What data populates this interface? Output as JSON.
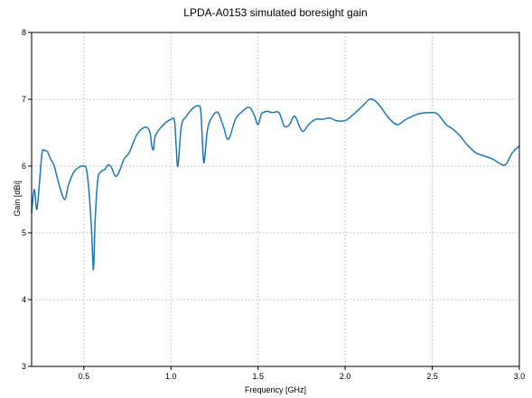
{
  "chart_data": {
    "type": "line",
    "title": "LPDA-A0153 simulated boresight gain",
    "xlabel": "Frequency [GHz]",
    "ylabel": "Gain [dBi]",
    "xlim": [
      0.2,
      3.0
    ],
    "ylim": [
      3,
      8
    ],
    "xticks": [
      0.5,
      1.0,
      1.5,
      2.0,
      2.5,
      3.0
    ],
    "xtick_labels": [
      "0.5",
      "1.0",
      "1.5",
      "2.0",
      "2.5",
      "3.0"
    ],
    "yticks": [
      3,
      4,
      5,
      6,
      7,
      8
    ],
    "ytick_labels": [
      "3",
      "4",
      "5",
      "6",
      "7",
      "8"
    ],
    "grid": true,
    "legend": "none",
    "colors": {
      "line": "#1f77b4",
      "grid": "#c8c8c8",
      "frame": "#000000"
    },
    "series": [
      {
        "x": [
          0.2,
          0.215,
          0.23,
          0.245,
          0.26,
          0.275,
          0.29,
          0.31,
          0.33,
          0.36,
          0.39,
          0.41,
          0.44,
          0.47,
          0.5,
          0.515,
          0.53,
          0.545,
          0.555,
          0.565,
          0.58,
          0.6,
          0.62,
          0.64,
          0.66,
          0.68,
          0.7,
          0.73,
          0.76,
          0.8,
          0.83,
          0.86,
          0.88,
          0.89,
          0.9,
          0.91,
          0.95,
          1.0,
          1.02,
          1.03,
          1.04,
          1.06,
          1.09,
          1.12,
          1.15,
          1.17,
          1.18,
          1.19,
          1.21,
          1.24,
          1.27,
          1.3,
          1.33,
          1.37,
          1.41,
          1.45,
          1.48,
          1.5,
          1.52,
          1.55,
          1.58,
          1.62,
          1.65,
          1.68,
          1.71,
          1.74,
          1.76,
          1.79,
          1.83,
          1.87,
          1.91,
          1.95,
          2.0,
          2.05,
          2.1,
          2.14,
          2.17,
          2.2,
          2.25,
          2.3,
          2.35,
          2.42,
          2.49,
          2.53,
          2.58,
          2.62,
          2.66,
          2.7,
          2.75,
          2.8,
          2.85,
          2.88,
          2.92,
          2.96,
          3.0
        ],
        "y": [
          5.3,
          5.65,
          5.35,
          5.75,
          6.2,
          6.23,
          6.22,
          6.1,
          6.0,
          5.7,
          5.5,
          5.7,
          5.9,
          5.98,
          6.0,
          5.95,
          5.6,
          5.0,
          4.45,
          5.2,
          5.8,
          5.92,
          5.95,
          6.02,
          5.97,
          5.85,
          5.9,
          6.1,
          6.2,
          6.45,
          6.55,
          6.58,
          6.5,
          6.3,
          6.25,
          6.45,
          6.6,
          6.7,
          6.68,
          6.3,
          6.0,
          6.6,
          6.75,
          6.85,
          6.9,
          6.85,
          6.4,
          6.05,
          6.55,
          6.75,
          6.8,
          6.6,
          6.4,
          6.7,
          6.82,
          6.88,
          6.75,
          6.62,
          6.78,
          6.82,
          6.8,
          6.8,
          6.6,
          6.62,
          6.75,
          6.58,
          6.52,
          6.62,
          6.7,
          6.7,
          6.72,
          6.68,
          6.68,
          6.78,
          6.9,
          7.0,
          6.98,
          6.9,
          6.72,
          6.62,
          6.7,
          6.78,
          6.8,
          6.78,
          6.62,
          6.55,
          6.45,
          6.32,
          6.2,
          6.15,
          6.1,
          6.05,
          6.02,
          6.2,
          6.3
        ]
      }
    ]
  }
}
